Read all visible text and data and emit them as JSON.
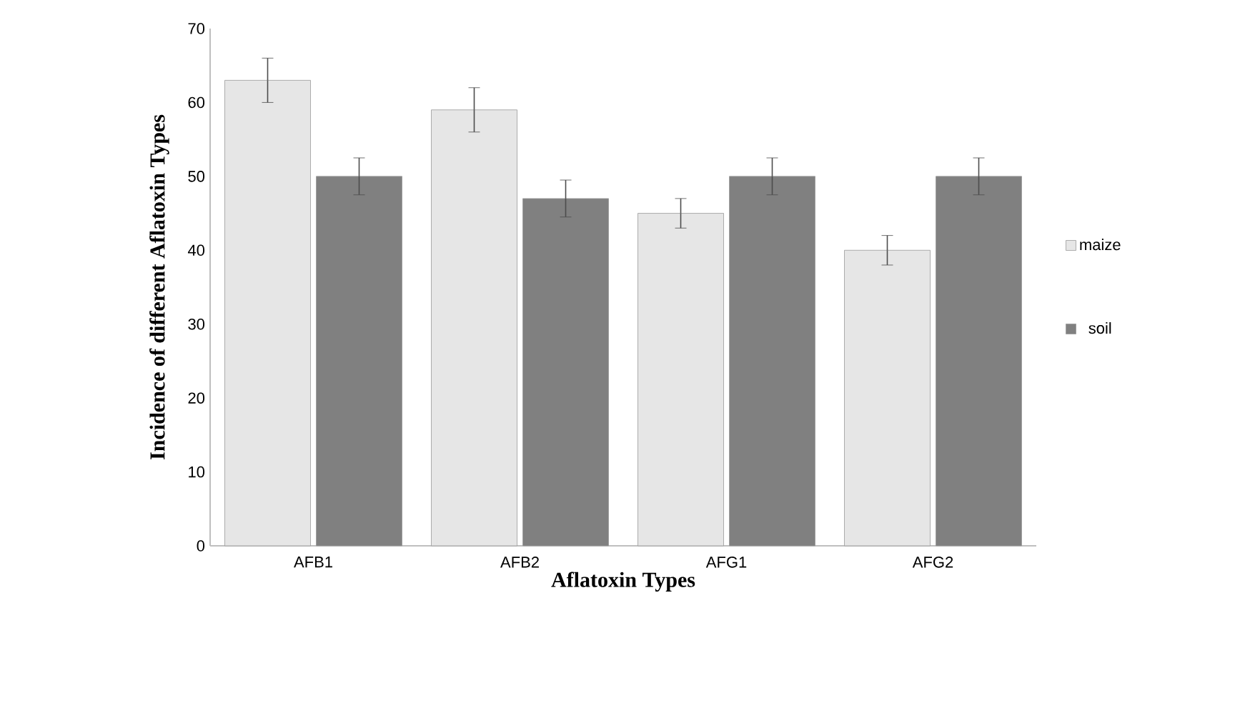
{
  "chart_data": {
    "type": "bar",
    "xlabel": "Aflatoxin Types",
    "ylabel": "Incidence of different Aflatoxin Types",
    "categories": [
      "AFB1",
      "AFB2",
      "AFG1",
      "AFG2"
    ],
    "series": [
      {
        "name": "maize",
        "color": "#e6e6e6",
        "values": [
          63,
          59,
          45,
          40
        ],
        "errors": [
          3,
          3,
          2,
          2
        ]
      },
      {
        "name": "soil",
        "color": "#808080",
        "values": [
          50,
          47,
          50,
          50
        ],
        "errors": [
          2.5,
          2.5,
          2.5,
          2.5
        ]
      }
    ],
    "ylim": [
      0,
      70
    ],
    "yticks": [
      0,
      10,
      20,
      30,
      40,
      50,
      60,
      70
    ],
    "grid": false,
    "legend": "right"
  }
}
